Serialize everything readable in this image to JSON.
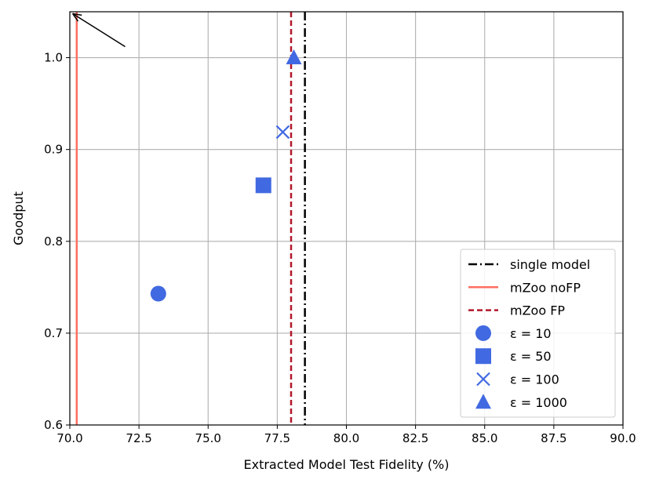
{
  "chart_data": {
    "type": "scatter",
    "title": "",
    "xlabel": "Extracted Model Test Fidelity (%)",
    "ylabel": "Goodput",
    "xlim": [
      70.0,
      90.0
    ],
    "ylim": [
      0.6,
      1.05
    ],
    "x_ticks": [
      "70.0",
      "72.5",
      "75.0",
      "77.5",
      "80.0",
      "82.5",
      "85.0",
      "87.5",
      "90.0"
    ],
    "y_ticks": [
      "0.6",
      "0.7",
      "0.8",
      "0.9",
      "1.0"
    ],
    "grid": true,
    "legend_position": "lower-right",
    "vlines": [
      {
        "name": "single model",
        "x": 78.5,
        "style": "dashdot",
        "color": "#000000"
      },
      {
        "name": "mZoo noFP",
        "x": 70.25,
        "style": "solid",
        "color": "#ff6f61"
      },
      {
        "name": "mZoo FP",
        "x": 78.0,
        "style": "dashed",
        "color": "#b2182b"
      }
    ],
    "series": [
      {
        "name": "ε = 10",
        "marker": "circle",
        "color": "#4169e1",
        "x": 73.2,
        "y": 0.743
      },
      {
        "name": "ε = 50",
        "marker": "square",
        "color": "#4169e1",
        "x": 77.0,
        "y": 0.861
      },
      {
        "name": "ε = 100",
        "marker": "x",
        "color": "#4169e1",
        "x": 77.7,
        "y": 0.919
      },
      {
        "name": "ε = 1000",
        "marker": "triangle",
        "color": "#4169e1",
        "x": 78.1,
        "y": 1.0
      }
    ],
    "annotations": [
      {
        "type": "arrow",
        "from": [
          72.0,
          1.012
        ],
        "to": [
          70.1,
          1.048
        ]
      }
    ]
  }
}
